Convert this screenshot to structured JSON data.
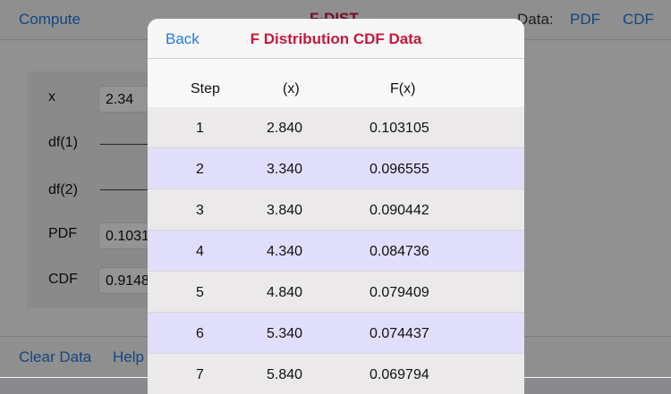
{
  "background": {
    "nav": {
      "left_button": "Compute",
      "title": "F-DIST",
      "data_label": "Data:",
      "pdf_button": "PDF",
      "cdf_button": "CDF"
    },
    "fields": [
      {
        "label": "x",
        "value": "2.34"
      },
      {
        "label": "df(1)",
        "value": ""
      },
      {
        "label": "df(2)",
        "value": ""
      },
      {
        "label": "PDF",
        "value": "0.1031"
      },
      {
        "label": "CDF",
        "value": "0.9148"
      }
    ],
    "bottom": {
      "clear_button": "Clear Data",
      "help_button": "Help"
    }
  },
  "modal": {
    "back_label": "Back",
    "title": "F Distribution CDF Data",
    "columns": [
      "Step",
      "(x)",
      "F(x)"
    ],
    "rows": [
      {
        "step": "1",
        "x": "2.840",
        "fx": "0.103105"
      },
      {
        "step": "2",
        "x": "3.340",
        "fx": "0.096555"
      },
      {
        "step": "3",
        "x": "3.840",
        "fx": "0.090442"
      },
      {
        "step": "4",
        "x": "4.340",
        "fx": "0.084736"
      },
      {
        "step": "5",
        "x": "4.840",
        "fx": "0.079409"
      },
      {
        "step": "6",
        "x": "5.340",
        "fx": "0.074437"
      },
      {
        "step": "7",
        "x": "5.840",
        "fx": "0.069794"
      }
    ]
  },
  "colors": {
    "accent": "#1f7ae0",
    "title": "#c8173b",
    "row_odd": "#ece9ea",
    "row_even": "#e0defa"
  }
}
